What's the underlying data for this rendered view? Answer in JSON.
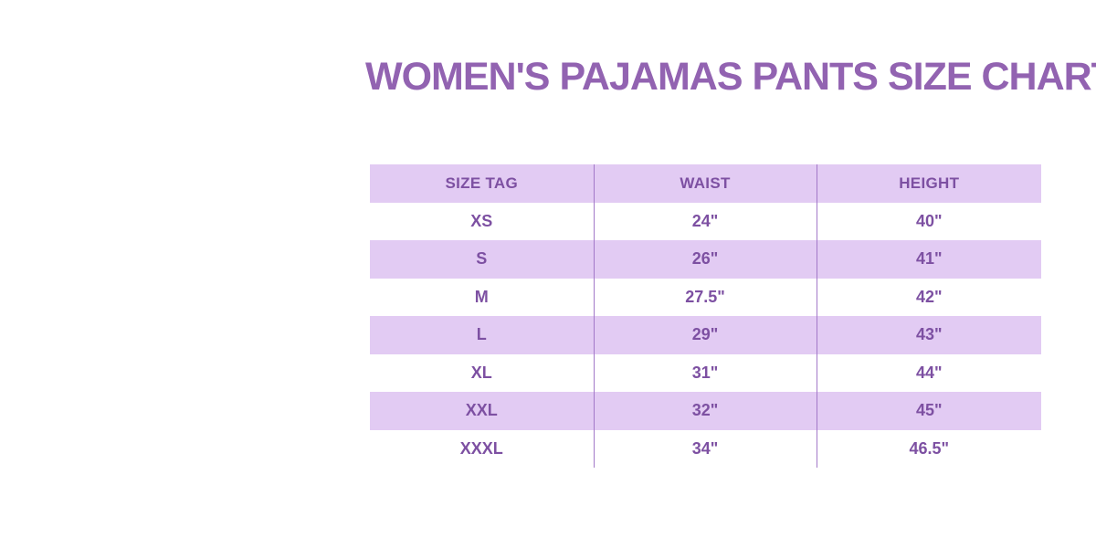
{
  "title": {
    "text": "WOMEN'S PAJAMAS PANTS SIZE CHART"
  },
  "colors": {
    "title_text": "#9263b1",
    "table_text": "#7d50a2",
    "row_shade_background": "#e2cbf3",
    "row_plain_background": "#ffffff",
    "column_divider": "#a379c8",
    "page_background": "#ffffff"
  },
  "chart_data": {
    "type": "table",
    "title": "WOMEN'S PAJAMAS PANTS SIZE CHART",
    "columns": [
      "SIZE TAG",
      "WAIST",
      "HEIGHT"
    ],
    "rows": [
      [
        "XS",
        "24\"",
        "40\""
      ],
      [
        "S",
        "26\"",
        "41\""
      ],
      [
        "M",
        "27.5\"",
        "42\""
      ],
      [
        "L",
        "29\"",
        "43\""
      ],
      [
        "XL",
        "31\"",
        "44\""
      ],
      [
        "XXL",
        "32\"",
        "45\""
      ],
      [
        "XXXL",
        "34\"",
        "46.5\""
      ]
    ],
    "layout_hints": {
      "header_shaded": true,
      "alternating_row_shading": [
        "header",
        "S",
        "L",
        "XXL"
      ],
      "gridlines": "vertical-only"
    }
  }
}
